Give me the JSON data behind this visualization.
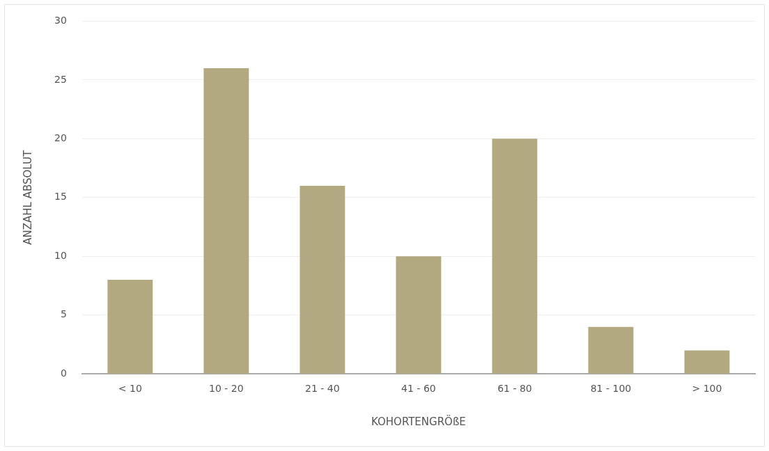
{
  "chart_data": {
    "type": "bar",
    "xlabel": "KOHORTENGRÖßE",
    "ylabel": "ANZAHL ABSOLUT",
    "categories": [
      "< 10",
      "10 - 20",
      "21 - 40",
      "41 - 60",
      "61 - 80",
      "81 - 100",
      "> 100"
    ],
    "values": [
      8,
      26,
      16,
      10,
      20,
      4,
      2
    ],
    "color": "#b2a981",
    "ylim": [
      0,
      30
    ],
    "yticks": [
      0,
      5,
      10,
      15,
      20,
      25,
      30
    ],
    "grid": "y",
    "legend": false
  }
}
